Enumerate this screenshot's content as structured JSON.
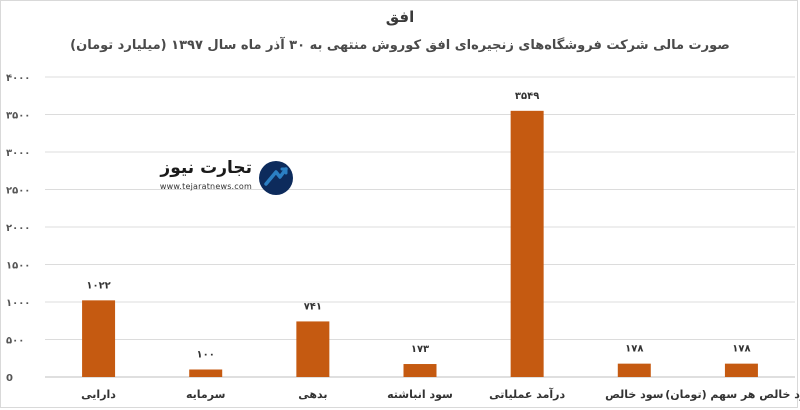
{
  "chart_data": {
    "type": "bar",
    "title": "افق",
    "subtitle": "صورت مالی شرکت فروشگاه‌های زنجیره‌ای افق کوروش منتهی به ۳۰ آذر ماه سال ۱۳۹۷ (میلیارد تومان)",
    "categories": [
      "دارایی",
      "سرمایه",
      "بدهی",
      "سود انباشته",
      "درآمد عملیاتی",
      "سود خالص",
      "سود خالص هر سهم (تومان)"
    ],
    "values": [
      1022,
      100,
      741,
      173,
      3549,
      178,
      178
    ],
    "value_labels": [
      "۱۰۲۲",
      "۱۰۰",
      "۷۴۱",
      "۱۷۳",
      "۳۵۴۹",
      "۱۷۸",
      "۱۷۸"
    ],
    "ylim": [
      0,
      4000
    ],
    "y_ticks": [
      0,
      500,
      1000,
      1500,
      2000,
      2500,
      3000,
      3500,
      4000
    ],
    "y_tick_labels": [
      "0",
      "۵۰۰",
      "۱۰۰۰",
      "۱۵۰۰",
      "۲۰۰۰",
      "۲۵۰۰",
      "۳۰۰۰",
      "۳۵۰۰",
      "۴۰۰۰"
    ],
    "grid": true,
    "bar_color": "#c55a11",
    "grid_color": "#dcdcdc"
  },
  "watermark": {
    "title": "تجارت نیوز",
    "url": "www.tejaratnews.com",
    "icon": "tejaratnews-logo-icon",
    "colors": {
      "mark_dark": "#0d2b5c",
      "mark_light": "#2b7fc3"
    }
  }
}
